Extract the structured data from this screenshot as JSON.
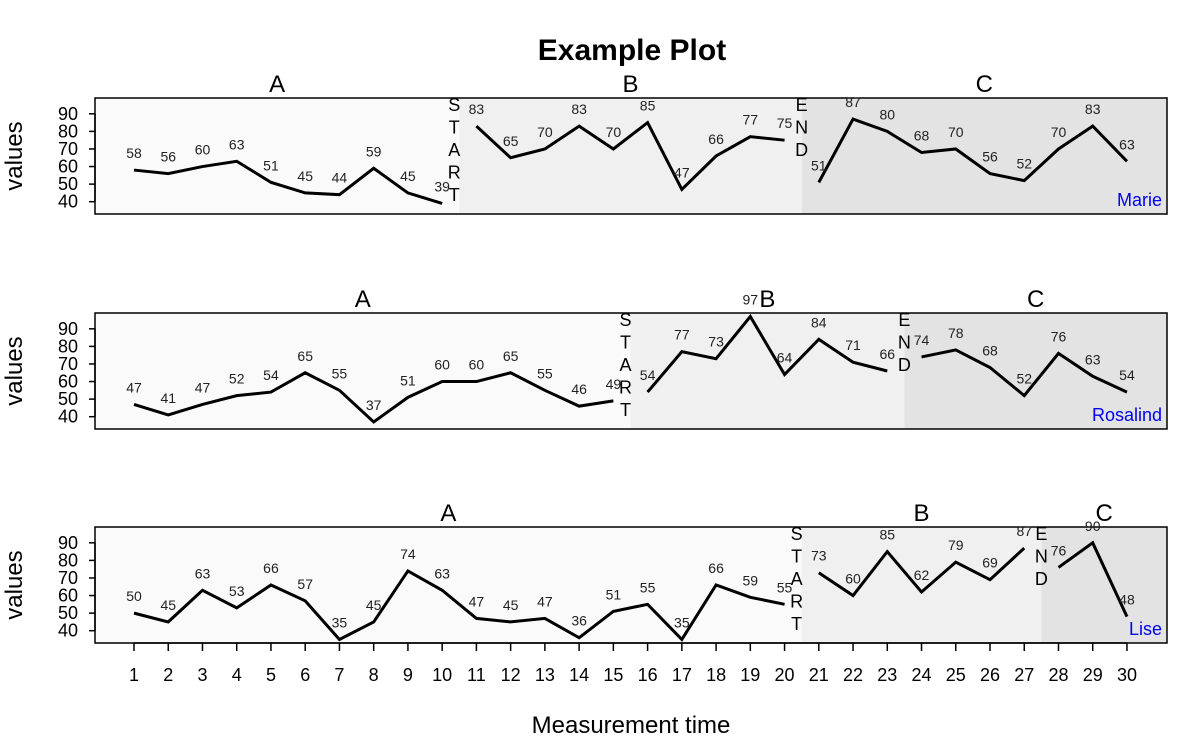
{
  "chart_data": {
    "type": "line",
    "title": "Example Plot",
    "xlabel": "Measurement time",
    "ylabel": "values",
    "xlim": [
      1,
      30
    ],
    "ylim": [
      33,
      99
    ],
    "yticks": [
      40,
      50,
      60,
      70,
      80,
      90
    ],
    "xticks": [
      1,
      2,
      3,
      4,
      5,
      6,
      7,
      8,
      9,
      10,
      11,
      12,
      13,
      14,
      15,
      16,
      17,
      18,
      19,
      20,
      21,
      22,
      23,
      24,
      25,
      26,
      27,
      28,
      29,
      30
    ],
    "phase_names": [
      "A",
      "B",
      "C"
    ],
    "phase_colors": [
      "#fafafa",
      "#f0f0f0",
      "#e3e3e3"
    ],
    "start_marker": [
      "S",
      "T",
      "A",
      "R",
      "T"
    ],
    "end_marker": [
      "E",
      "N",
      "D"
    ],
    "label_color": "#0000ee",
    "series": [
      {
        "name": "Marie",
        "phase_starts": [
          1,
          11,
          21
        ],
        "values": [
          58,
          56,
          60,
          63,
          51,
          45,
          44,
          59,
          45,
          39,
          83,
          65,
          70,
          83,
          70,
          85,
          47,
          66,
          77,
          75,
          51,
          87,
          80,
          68,
          70,
          56,
          52,
          70,
          83,
          63
        ],
        "labels": [
          "58",
          "56",
          "60",
          "63",
          "51",
          "45",
          "44",
          "59",
          "45",
          "39",
          "83",
          "65",
          "70",
          "83",
          "70",
          "85",
          "47",
          "66",
          "77",
          "75",
          "51",
          "87",
          "80",
          "68",
          "70",
          "56",
          "52",
          "70",
          "83",
          "63"
        ]
      },
      {
        "name": "Rosalind",
        "phase_starts": [
          1,
          16,
          24
        ],
        "values": [
          47,
          41,
          47,
          52,
          54,
          65,
          55,
          37,
          51,
          60,
          60,
          65,
          55,
          46,
          49,
          54,
          77,
          73,
          97,
          64,
          84,
          71,
          66,
          74,
          78,
          68,
          52,
          76,
          63,
          54
        ],
        "labels": [
          "47",
          "41",
          "47",
          "52",
          "54",
          "65",
          "55",
          "37",
          "51",
          "60",
          "60",
          "65",
          "55",
          "46",
          "49",
          "54",
          "77",
          "73",
          "97",
          "64",
          "84",
          "71",
          "66",
          "74",
          "78",
          "68",
          "52",
          "76",
          "63",
          "54"
        ]
      },
      {
        "name": "Lise",
        "phase_starts": [
          1,
          21,
          28
        ],
        "values": [
          50,
          45,
          63,
          53,
          66,
          57,
          35,
          45,
          74,
          63,
          47,
          45,
          47,
          36,
          51,
          55,
          35,
          66,
          59,
          55,
          73,
          60,
          85,
          62,
          79,
          69,
          87,
          76,
          90,
          48
        ],
        "labels": [
          "50",
          "45",
          "63",
          "53",
          "66",
          "57",
          "35",
          "45",
          "74",
          "63",
          "47",
          "45",
          "47",
          "36",
          "51",
          "55",
          "35",
          "66",
          "59",
          "55",
          "73",
          "60",
          "85",
          "62",
          "79",
          "69",
          "87",
          "76",
          "90",
          "48"
        ]
      }
    ]
  }
}
